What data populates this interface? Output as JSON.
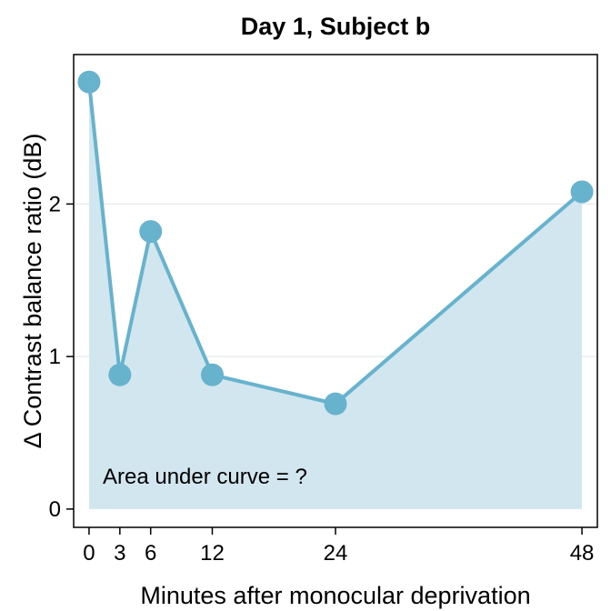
{
  "chart_data": {
    "type": "line",
    "title": "Day 1, Subject b",
    "xlabel": "Minutes after monocular deprivation",
    "ylabel": "Δ Contrast balance ratio (dB)",
    "x": [
      0,
      3,
      6,
      12,
      24,
      48
    ],
    "series": [
      {
        "values": [
          2.8,
          0.88,
          1.82,
          0.88,
          0.69,
          2.08
        ]
      }
    ],
    "xticks": [
      "0",
      "3",
      "6",
      "12",
      "24",
      "48"
    ],
    "yticks": [
      "0",
      "1",
      "2"
    ],
    "xlim": [
      -1.5,
      49.5
    ],
    "ylim": [
      -0.12,
      2.98
    ],
    "area_fill": true,
    "annotation": "Area under curve = ?",
    "grid": "horizontal",
    "colors": {
      "line": "#67b2cd",
      "fill": "#d1e6ef",
      "grid": "#e6eaea",
      "frame": "#000000"
    }
  }
}
